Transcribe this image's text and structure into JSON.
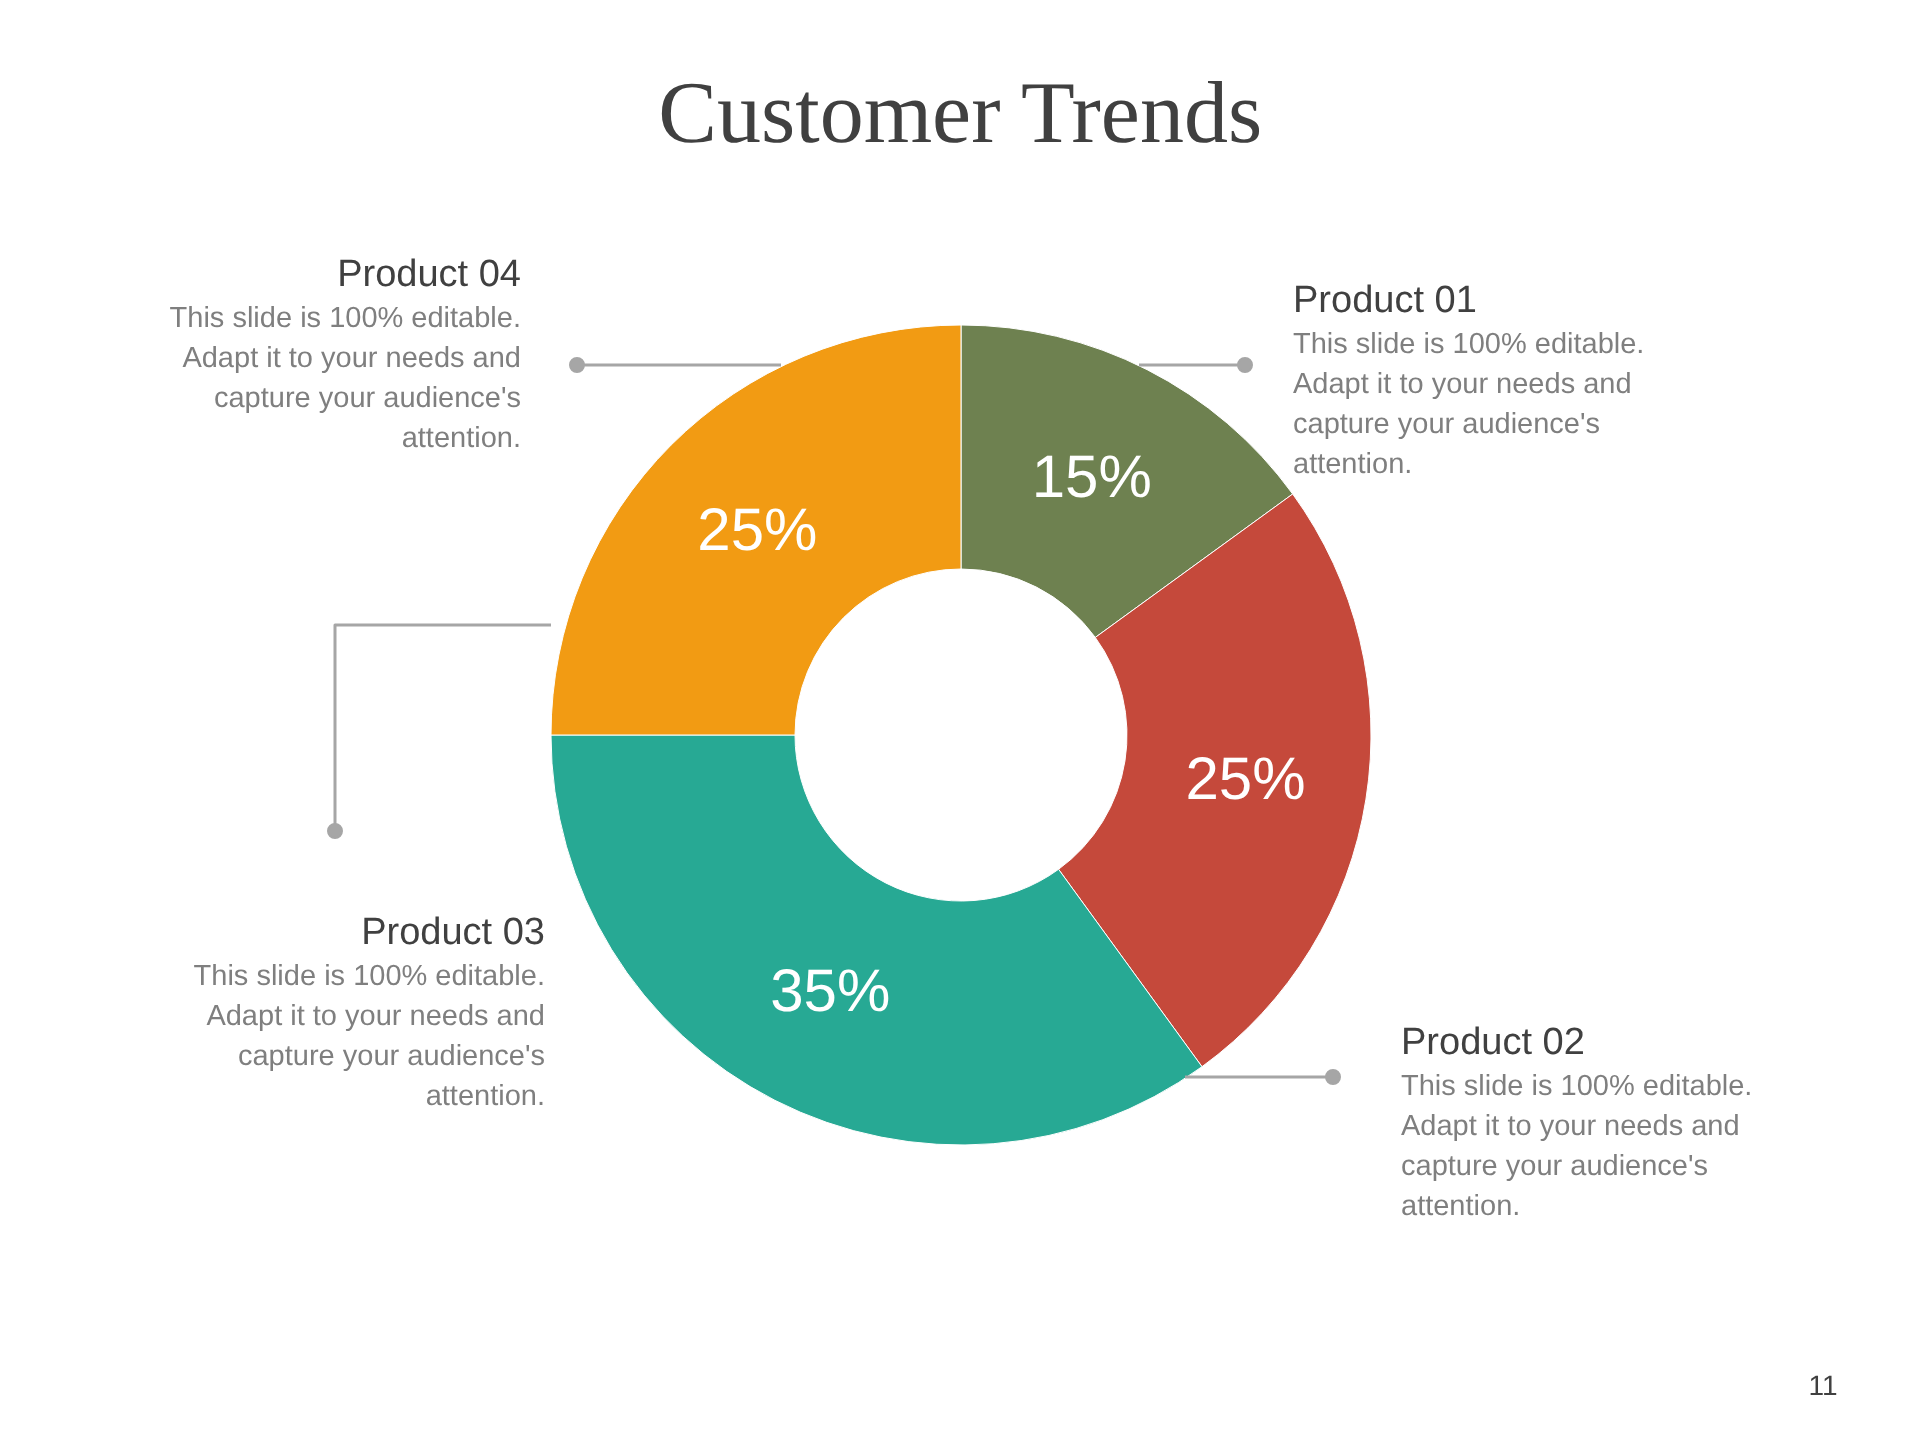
{
  "chart_data": {
    "type": "donut",
    "title": "Customer Trends",
    "categories": [
      "Product 01",
      "Product 02",
      "Product 03",
      "Product 04"
    ],
    "values": [
      15,
      25,
      35,
      25
    ],
    "colors": [
      "#6e8150",
      "#c5493b",
      "#27a994",
      "#f29b13"
    ],
    "value_labels": [
      "15%",
      "25%",
      "35%",
      "25%"
    ],
    "annotations": [
      "This slide is 100% editable. Adapt it to your needs and capture your audience's attention.",
      "This slide is 100% editable. Adapt it to your needs and capture your audience's attention.",
      "This slide is 100% editable. Adapt it to your needs and capture your audience's attention.",
      "This slide is 100% editable. Adapt it to your needs and capture your audience's attention.",
      "11"
    ]
  }
}
